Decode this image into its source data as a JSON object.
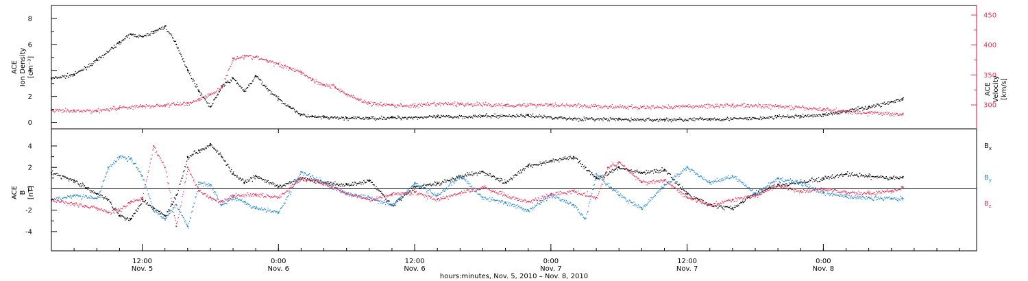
{
  "chart_data": [
    {
      "type": "scatter",
      "title": "",
      "xlabel": "",
      "left_axis": {
        "label_lines": [
          "ACE",
          "Ion Density",
          "[cm⁻³]"
        ],
        "range": [
          -0.5,
          9
        ],
        "ticks": [
          "0",
          "2",
          "4",
          "6",
          "8"
        ],
        "tick_values": [
          0,
          2,
          4,
          6,
          8
        ],
        "color": "#000000"
      },
      "right_axis": {
        "label_lines": [
          "ACE",
          "Velocity",
          "[km/s]"
        ],
        "range": [
          260,
          466
        ],
        "ticks": [
          "300",
          "350",
          "400",
          "450"
        ],
        "tick_values": [
          300,
          350,
          400,
          450
        ],
        "color": "#e8315a"
      },
      "series": [
        {
          "color": "#000000",
          "axis": "left",
          "x_hours": [
            0,
            2,
            4,
            6,
            7,
            8,
            9,
            10,
            11,
            12,
            13,
            14,
            15,
            16,
            17,
            18,
            19,
            20,
            21,
            22,
            23,
            24,
            26,
            28,
            30,
            34,
            38,
            42,
            46,
            50,
            54,
            58,
            62,
            64,
            66,
            68,
            70,
            72,
            74,
            75
          ],
          "values": [
            3.4,
            3.7,
            4.8,
            6.2,
            6.8,
            6.6,
            7.0,
            7.4,
            6.0,
            4.0,
            2.4,
            1.2,
            2.8,
            3.4,
            2.4,
            3.6,
            2.6,
            1.8,
            1.2,
            0.6,
            0.45,
            0.4,
            0.35,
            0.35,
            0.38,
            0.45,
            0.5,
            0.55,
            0.3,
            0.25,
            0.22,
            0.28,
            0.32,
            0.45,
            0.5,
            0.6,
            0.9,
            1.2,
            1.6,
            1.8
          ]
        },
        {
          "color": "#e8315a",
          "axis": "right",
          "x_hours": [
            0,
            2,
            4,
            6,
            8,
            10,
            12,
            13,
            14,
            15,
            16,
            17,
            18,
            19,
            20,
            21,
            22,
            23,
            24,
            25,
            26,
            27,
            28,
            30,
            32,
            34,
            36,
            40,
            44,
            48,
            52,
            56,
            60,
            64,
            68,
            72,
            75
          ],
          "values": [
            291,
            290,
            291,
            296,
            298,
            300,
            303,
            310,
            318,
            330,
            378,
            382,
            380,
            374,
            368,
            362,
            355,
            342,
            334,
            330,
            318,
            310,
            303,
            300,
            299,
            302,
            302,
            300,
            301,
            298,
            296,
            298,
            300,
            298,
            293,
            287,
            285
          ]
        }
      ]
    },
    {
      "type": "scatter",
      "title": "",
      "xlabel": "hours:minutes, Nov.  5, 2010 – Nov.  8, 2010",
      "left_axis": {
        "label_lines": [
          "ACE",
          "B",
          "[nT]"
        ],
        "range": [
          -5.8,
          5.6
        ],
        "ticks": [
          "-4",
          "-2",
          "0",
          "2",
          "4"
        ],
        "tick_values": [
          -4,
          -2,
          0,
          2,
          4
        ],
        "color": "#000000"
      },
      "zero_line": true,
      "x_range_hours": [
        0,
        81.5
      ],
      "x_ticks": [
        {
          "hour": 8,
          "top": "12:00",
          "bottom": "Nov. 5"
        },
        {
          "hour": 20,
          "top": "0:00",
          "bottom": "Nov. 6"
        },
        {
          "hour": 32,
          "top": "12:00",
          "bottom": "Nov. 6"
        },
        {
          "hour": 44,
          "top": "0:00",
          "bottom": "Nov. 7"
        },
        {
          "hour": 56,
          "top": "12:00",
          "bottom": "Nov. 7"
        },
        {
          "hour": 68,
          "top": "0:00",
          "bottom": "Nov. 8"
        }
      ],
      "series": [
        {
          "name_base": "B",
          "name_sub": "x",
          "color": "#000000",
          "x_hours": [
            0,
            2,
            4,
            5,
            6,
            7,
            8,
            9,
            10,
            11,
            12,
            13,
            14,
            15,
            16,
            17,
            18,
            20,
            22,
            24,
            26,
            28,
            30,
            32,
            34,
            36,
            38,
            40,
            42,
            44,
            46,
            48,
            50,
            52,
            54,
            56,
            58,
            60,
            62,
            64,
            66,
            68,
            70,
            72,
            74,
            75
          ],
          "values": [
            1.5,
            0.8,
            -0.5,
            -1.0,
            -2.5,
            -2.8,
            -1.0,
            -1.8,
            -2.5,
            -0.6,
            3.0,
            3.6,
            4.2,
            3.0,
            1.4,
            0.6,
            1.2,
            0.2,
            1.0,
            0.6,
            0.4,
            0.8,
            -1.5,
            0.2,
            0.5,
            1.2,
            1.6,
            0.6,
            2.2,
            2.6,
            3.0,
            1.0,
            2.0,
            1.5,
            1.8,
            -0.5,
            -1.5,
            -1.8,
            -0.4,
            0.4,
            0.6,
            1.0,
            1.4,
            1.2,
            1.0,
            1.1
          ]
        },
        {
          "name_base": "B",
          "name_sub": "y",
          "color": "#1f86dd",
          "x_hours": [
            0,
            2,
            4,
            5,
            6,
            7,
            8,
            9,
            10,
            11,
            12,
            13,
            14,
            15,
            16,
            17,
            18,
            20,
            22,
            24,
            26,
            28,
            30,
            32,
            34,
            36,
            38,
            40,
            42,
            44,
            46,
            47,
            48,
            50,
            52,
            54,
            56,
            58,
            60,
            62,
            64,
            66,
            68,
            70,
            72,
            74,
            75
          ],
          "values": [
            -1.0,
            -0.6,
            -0.9,
            2.0,
            3.0,
            2.8,
            1.2,
            -2.0,
            -2.8,
            -1.5,
            -3.5,
            0.6,
            0.4,
            -1.5,
            -0.8,
            -1.2,
            -1.8,
            -2.2,
            1.6,
            0.6,
            -0.4,
            -0.8,
            -1.5,
            0.5,
            -0.6,
            1.2,
            -0.8,
            -1.3,
            -2.0,
            -0.6,
            -1.5,
            -2.8,
            1.4,
            -0.6,
            -1.8,
            0.4,
            2.0,
            0.6,
            1.2,
            -0.4,
            1.0,
            0.6,
            -0.3,
            -0.7,
            -0.8,
            -0.9,
            -0.9
          ]
        },
        {
          "name_base": "B",
          "name_sub": "z",
          "color": "#e8315a",
          "x_hours": [
            0,
            2,
            3,
            4,
            5,
            6,
            7,
            8,
            9,
            10,
            11,
            12,
            13,
            14,
            15,
            16,
            18,
            20,
            22,
            24,
            26,
            28,
            30,
            32,
            34,
            36,
            38,
            40,
            42,
            44,
            46,
            48,
            49,
            50,
            52,
            54,
            56,
            58,
            60,
            62,
            64,
            66,
            68,
            70,
            72,
            74,
            75
          ],
          "values": [
            -1.0,
            -1.4,
            -1.6,
            -1.8,
            -2.2,
            -2.0,
            -1.2,
            -0.8,
            4.0,
            2.0,
            -3.5,
            2.0,
            -0.2,
            -0.8,
            -1.2,
            -0.6,
            -0.5,
            -0.8,
            1.0,
            0.5,
            -0.4,
            -1.0,
            -0.5,
            -0.3,
            -1.0,
            -0.4,
            0.2,
            -0.6,
            -1.2,
            -0.5,
            -0.2,
            -0.8,
            2.0,
            2.5,
            0.6,
            0.8,
            -0.8,
            -1.5,
            -1.0,
            -0.6,
            0.3,
            -0.2,
            0.0,
            -0.3,
            -0.4,
            -0.2,
            0.2
          ]
        }
      ]
    }
  ]
}
